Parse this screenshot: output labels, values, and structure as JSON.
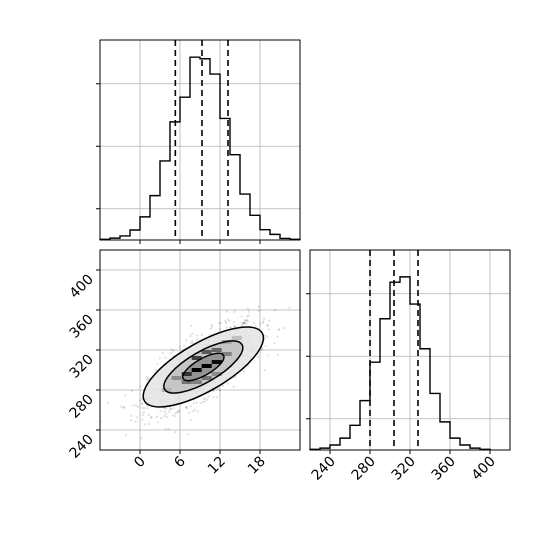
{
  "chart_data": [
    {
      "type": "histogram",
      "panel": "top-left",
      "variable": "x",
      "xlim": [
        -6,
        24
      ],
      "bins": [
        {
          "x0": -6.0,
          "x1": -4.5,
          "count": 2
        },
        {
          "x0": -4.5,
          "x1": -3.0,
          "count": 6
        },
        {
          "x0": -3.0,
          "x1": -1.5,
          "count": 13
        },
        {
          "x0": -1.5,
          "x1": 0.0,
          "count": 32
        },
        {
          "x0": 0.0,
          "x1": 1.5,
          "count": 74
        },
        {
          "x0": 1.5,
          "x1": 3.0,
          "count": 142
        },
        {
          "x0": 3.0,
          "x1": 4.5,
          "count": 253
        },
        {
          "x0": 4.5,
          "x1": 6.0,
          "count": 378
        },
        {
          "x0": 6.0,
          "x1": 7.5,
          "count": 457
        },
        {
          "x0": 7.5,
          "x1": 9.0,
          "count": 585
        },
        {
          "x0": 9.0,
          "x1": 10.5,
          "count": 580
        },
        {
          "x0": 10.5,
          "x1": 12.0,
          "count": 531
        },
        {
          "x0": 12.0,
          "x1": 13.5,
          "count": 389
        },
        {
          "x0": 13.5,
          "x1": 15.0,
          "count": 273
        },
        {
          "x0": 15.0,
          "x1": 16.5,
          "count": 147
        },
        {
          "x0": 16.5,
          "x1": 18.0,
          "count": 79
        },
        {
          "x0": 18.0,
          "x1": 19.5,
          "count": 33
        },
        {
          "x0": 19.5,
          "x1": 21.0,
          "count": 18
        },
        {
          "x0": 21.0,
          "x1": 22.5,
          "count": 5
        },
        {
          "x0": 22.5,
          "x1": 24.0,
          "count": 2
        }
      ],
      "quantile_lines": [
        5.3,
        9.3,
        13.2
      ],
      "ylim": [
        0,
        640
      ]
    },
    {
      "type": "scatter",
      "panel": "bottom-left",
      "variables": [
        "x",
        "y"
      ],
      "xlim": [
        -6,
        24
      ],
      "ylim": [
        220,
        420
      ],
      "x_ticks": [
        0,
        6,
        12,
        18
      ],
      "y_ticks": [
        240,
        280,
        320,
        360,
        400
      ],
      "x_tick_labels": [
        "0",
        "6",
        "12",
        "18"
      ],
      "y_tick_labels": [
        "240",
        "280",
        "320",
        "360",
        "400"
      ],
      "center": [
        9.5,
        303
      ],
      "contour_levels": [
        {
          "rx": 10.2,
          "ry": 44,
          "angle_deg": -30
        },
        {
          "rx": 6.7,
          "ry": 28,
          "angle_deg": -30
        },
        {
          "rx": 3.5,
          "ry": 15,
          "angle_deg": -30
        }
      ],
      "density_cells": [
        {
          "x": 8.5,
          "y": 300,
          "v": 1.0
        },
        {
          "x": 10.0,
          "y": 304,
          "v": 1.0
        },
        {
          "x": 11.5,
          "y": 308,
          "v": 0.95
        },
        {
          "x": 7.0,
          "y": 296,
          "v": 0.8
        },
        {
          "x": 10.0,
          "y": 318,
          "v": 0.65
        },
        {
          "x": 8.5,
          "y": 312,
          "v": 0.75
        },
        {
          "x": 11.5,
          "y": 320,
          "v": 0.6
        },
        {
          "x": 7.0,
          "y": 288,
          "v": 0.55
        },
        {
          "x": 13.0,
          "y": 316,
          "v": 0.5
        },
        {
          "x": 5.5,
          "y": 292,
          "v": 0.45
        },
        {
          "x": 8.5,
          "y": 288,
          "v": 0.5
        },
        {
          "x": 13.0,
          "y": 328,
          "v": 0.35
        },
        {
          "x": 4.0,
          "y": 280,
          "v": 0.3
        },
        {
          "x": 14.5,
          "y": 332,
          "v": 0.25
        },
        {
          "x": 10.0,
          "y": 292,
          "v": 0.55
        },
        {
          "x": 11.5,
          "y": 296,
          "v": 0.45
        }
      ]
    },
    {
      "type": "histogram",
      "panel": "bottom-right",
      "variable": "y",
      "xlim": [
        220,
        420
      ],
      "x_ticks": [
        240,
        280,
        320,
        360,
        400
      ],
      "x_tick_labels": [
        "240",
        "280",
        "320",
        "360",
        "400"
      ],
      "bins": [
        {
          "x0": 220,
          "x1": 230,
          "count": 2
        },
        {
          "x0": 230,
          "x1": 240,
          "count": 6
        },
        {
          "x0": 240,
          "x1": 250,
          "count": 16
        },
        {
          "x0": 250,
          "x1": 260,
          "count": 38
        },
        {
          "x0": 260,
          "x1": 270,
          "count": 79
        },
        {
          "x0": 270,
          "x1": 280,
          "count": 158
        },
        {
          "x0": 280,
          "x1": 290,
          "count": 281
        },
        {
          "x0": 290,
          "x1": 300,
          "count": 420
        },
        {
          "x0": 300,
          "x1": 310,
          "count": 537
        },
        {
          "x0": 310,
          "x1": 320,
          "count": 554
        },
        {
          "x0": 320,
          "x1": 330,
          "count": 467
        },
        {
          "x0": 330,
          "x1": 340,
          "count": 324
        },
        {
          "x0": 340,
          "x1": 350,
          "count": 181
        },
        {
          "x0": 350,
          "x1": 360,
          "count": 90
        },
        {
          "x0": 360,
          "x1": 370,
          "count": 38
        },
        {
          "x0": 370,
          "x1": 380,
          "count": 16
        },
        {
          "x0": 380,
          "x1": 390,
          "count": 6
        },
        {
          "x0": 390,
          "x1": 400,
          "count": 2
        }
      ],
      "quantile_lines": [
        280,
        304,
        328
      ],
      "ylim": [
        0,
        640
      ]
    }
  ]
}
